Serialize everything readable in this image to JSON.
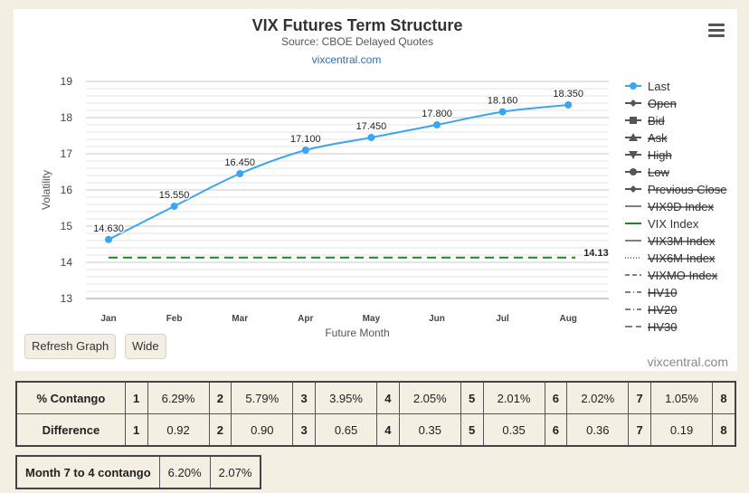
{
  "chart_data": {
    "type": "line",
    "title": "VIX Futures Term Structure",
    "subtitle": "Source: CBOE Delayed Quotes",
    "link": "vixcentral.com",
    "xlabel": "Future Month",
    "ylabel": "Volatility",
    "categories": [
      "Jan",
      "Feb",
      "Mar",
      "Apr",
      "May",
      "Jun",
      "Jul",
      "Aug"
    ],
    "ylim": [
      13,
      19
    ],
    "yticks": [
      "19",
      "18",
      "17",
      "16",
      "15",
      "14",
      "13"
    ],
    "series": [
      {
        "name": "Last",
        "color": "#3aa6ef",
        "values": [
          14.63,
          15.55,
          16.45,
          17.1,
          17.45,
          17.8,
          18.16,
          18.35
        ],
        "labels": [
          "14.630",
          "15.550",
          "16.450",
          "17.100",
          "17.450",
          "17.800",
          "18.160",
          "18.350"
        ]
      },
      {
        "name": "VIX Index",
        "color": "#1a8a1a",
        "dashed": true,
        "values": [
          14.13,
          14.13,
          14.13,
          14.13,
          14.13,
          14.13,
          14.13,
          14.13
        ],
        "end_label": "14.13"
      }
    ],
    "legend": [
      {
        "label": "Last",
        "active": true,
        "symbol": "circle",
        "color": "#3aa6ef"
      },
      {
        "label": "Open",
        "active": false,
        "symbol": "diamond"
      },
      {
        "label": "Bid",
        "active": false,
        "symbol": "square"
      },
      {
        "label": "Ask",
        "active": false,
        "symbol": "triangle"
      },
      {
        "label": "High",
        "active": false,
        "symbol": "triangle-down"
      },
      {
        "label": "Low",
        "active": false,
        "symbol": "circle"
      },
      {
        "label": "Previous Close",
        "active": false,
        "symbol": "diamond"
      },
      {
        "label": "VIX9D Index",
        "active": false,
        "symbol": "solid"
      },
      {
        "label": "VIX Index",
        "active": true,
        "symbol": "solid",
        "color": "#1a8a1a"
      },
      {
        "label": "VIX3M Index",
        "active": false,
        "symbol": "solid"
      },
      {
        "label": "VIX6M Index",
        "active": false,
        "symbol": "dotted"
      },
      {
        "label": "VIXMO Index",
        "active": false,
        "symbol": "dashed"
      },
      {
        "label": "HV10",
        "active": false,
        "symbol": "dashdot"
      },
      {
        "label": "HV20",
        "active": false,
        "symbol": "dashdot"
      },
      {
        "label": "HV30",
        "active": false,
        "symbol": "longdash"
      }
    ],
    "legend_position": "right",
    "grid": true
  },
  "buttons": {
    "refresh": "Refresh Graph",
    "wide": "Wide"
  },
  "credit": "vixcentral.com",
  "contango_table": {
    "contango_label": "% Contango",
    "difference_label": "Difference",
    "contango": [
      {
        "n": "1",
        "v": "6.29%"
      },
      {
        "n": "2",
        "v": "5.79%"
      },
      {
        "n": "3",
        "v": "3.95%"
      },
      {
        "n": "4",
        "v": "2.05%"
      },
      {
        "n": "5",
        "v": "2.01%"
      },
      {
        "n": "6",
        "v": "2.02%"
      },
      {
        "n": "7",
        "v": "1.05%"
      },
      {
        "n": "8",
        "v": ""
      }
    ],
    "difference": [
      {
        "n": "1",
        "v": "0.92"
      },
      {
        "n": "2",
        "v": "0.90"
      },
      {
        "n": "3",
        "v": "0.65"
      },
      {
        "n": "4",
        "v": "0.35"
      },
      {
        "n": "5",
        "v": "0.35"
      },
      {
        "n": "6",
        "v": "0.36"
      },
      {
        "n": "7",
        "v": "0.19"
      },
      {
        "n": "8",
        "v": ""
      }
    ]
  },
  "month74": {
    "label": "Month 7 to 4 contango",
    "v1": "6.20%",
    "v2": "2.07%"
  }
}
